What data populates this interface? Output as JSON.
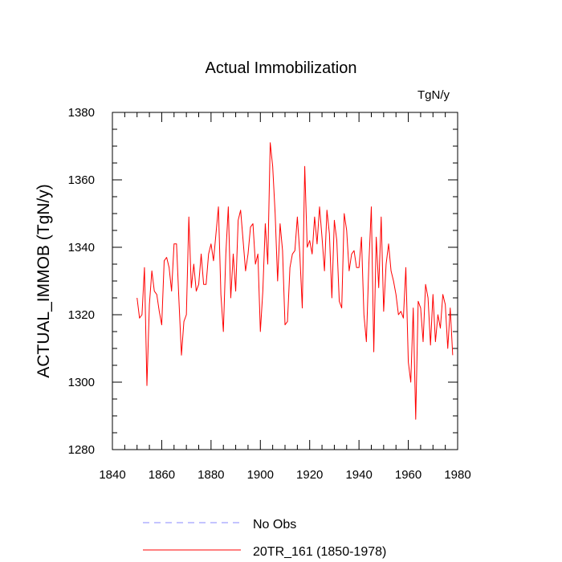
{
  "chart_data": {
    "type": "line",
    "title": "Actual Immobilization",
    "units_label": "TgN/y",
    "xlabel": "",
    "ylabel": "ACTUAL_IMMOB  (TgN/y)",
    "xlim": [
      1840,
      1980
    ],
    "ylim": [
      1280,
      1380
    ],
    "x_ticks": [
      1840,
      1860,
      1880,
      1900,
      1920,
      1940,
      1960,
      1980
    ],
    "y_ticks": [
      1280,
      1300,
      1320,
      1340,
      1360,
      1380
    ],
    "x_tick_labels": [
      "1840",
      "1860",
      "1880",
      "1900",
      "1920",
      "1940",
      "1960",
      "1980"
    ],
    "y_tick_labels": [
      "1280",
      "1300",
      "1320",
      "1340",
      "1360",
      "1380"
    ],
    "grid": false,
    "legend_position": "bottom",
    "series": [
      {
        "name": "No Obs",
        "color": "#8a8aff",
        "style": "dashed",
        "x": [],
        "values": []
      },
      {
        "name": "20TR_161 (1850-1978)",
        "color": "#ff0000",
        "style": "solid",
        "x": [
          1850,
          1851,
          1852,
          1853,
          1854,
          1855,
          1856,
          1857,
          1858,
          1859,
          1860,
          1861,
          1862,
          1863,
          1864,
          1865,
          1866,
          1867,
          1868,
          1869,
          1870,
          1871,
          1872,
          1873,
          1874,
          1875,
          1876,
          1877,
          1878,
          1879,
          1880,
          1881,
          1882,
          1883,
          1884,
          1885,
          1886,
          1887,
          1888,
          1889,
          1890,
          1891,
          1892,
          1893,
          1894,
          1895,
          1896,
          1897,
          1898,
          1899,
          1900,
          1901,
          1902,
          1903,
          1904,
          1905,
          1906,
          1907,
          1908,
          1909,
          1910,
          1911,
          1912,
          1913,
          1914,
          1915,
          1916,
          1917,
          1918,
          1919,
          1920,
          1921,
          1922,
          1923,
          1924,
          1925,
          1926,
          1927,
          1928,
          1929,
          1930,
          1931,
          1932,
          1933,
          1934,
          1935,
          1936,
          1937,
          1938,
          1939,
          1940,
          1941,
          1942,
          1943,
          1944,
          1945,
          1946,
          1947,
          1948,
          1949,
          1950,
          1951,
          1952,
          1953,
          1954,
          1955,
          1956,
          1957,
          1958,
          1959,
          1960,
          1961,
          1962,
          1963,
          1964,
          1965,
          1966,
          1967,
          1968,
          1969,
          1970,
          1971,
          1972,
          1973,
          1974,
          1975,
          1976,
          1977,
          1978
        ],
        "values": [
          1325,
          1319,
          1320,
          1334,
          1299,
          1323,
          1333,
          1327,
          1326,
          1321,
          1317,
          1336,
          1337,
          1334,
          1327,
          1341,
          1341,
          1324,
          1308,
          1318,
          1320,
          1349,
          1328,
          1335,
          1327,
          1329,
          1338,
          1329,
          1329,
          1338,
          1341,
          1336,
          1344,
          1352,
          1326,
          1315,
          1338,
          1352,
          1325,
          1338,
          1327,
          1348,
          1351,
          1342,
          1333,
          1338,
          1346,
          1347,
          1335,
          1338,
          1315,
          1327,
          1347,
          1335,
          1371,
          1364,
          1350,
          1330,
          1347,
          1339,
          1317,
          1318,
          1334,
          1338,
          1339,
          1349,
          1338,
          1322,
          1364,
          1340,
          1342,
          1338,
          1349,
          1341,
          1352,
          1343,
          1333,
          1351,
          1344,
          1325,
          1348,
          1342,
          1324,
          1322,
          1350,
          1345,
          1333,
          1338,
          1339,
          1334,
          1334,
          1343,
          1320,
          1312,
          1335,
          1352,
          1309,
          1343,
          1328,
          1349,
          1321,
          1335,
          1341,
          1333,
          1330,
          1326,
          1320,
          1321,
          1319,
          1334,
          1306,
          1300,
          1322,
          1289,
          1324,
          1322,
          1312,
          1329,
          1325,
          1311,
          1326,
          1312,
          1320,
          1316,
          1326,
          1323,
          1310,
          1322,
          1308
        ]
      }
    ]
  }
}
